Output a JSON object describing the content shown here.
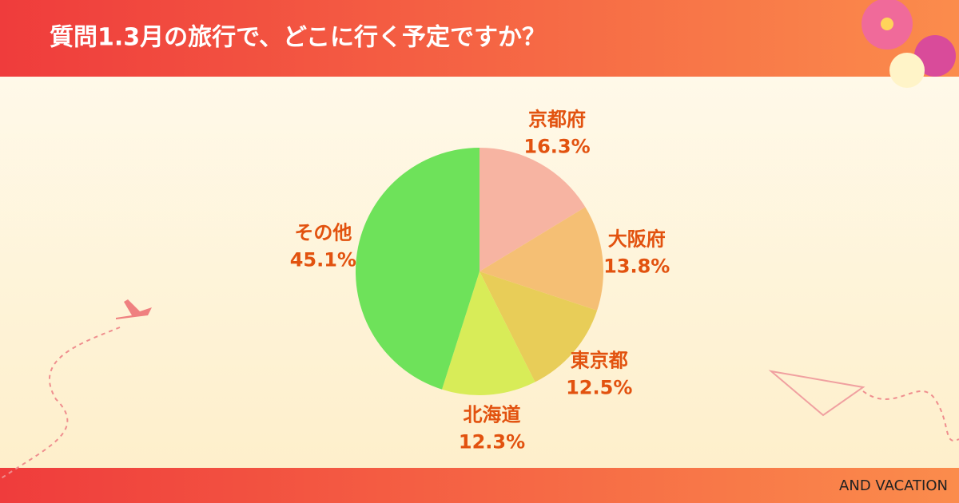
{
  "chart_data": {
    "type": "pie",
    "title": "質問1.3月の旅行で、どこに行く予定ですか？",
    "categories": [
      "京都府",
      "大阪府",
      "東京都",
      "北海道",
      "その他"
    ],
    "values": [
      16.3,
      13.8,
      12.5,
      12.3,
      45.1
    ],
    "value_labels": [
      "16.3%",
      "13.8%",
      "12.5%",
      "12.3%",
      "45.1%"
    ],
    "colors": [
      "#f7b4a2",
      "#f5bf74",
      "#e8cd58",
      "#d8ec58",
      "#6ee25a"
    ]
  },
  "footer": "AND VACATION"
}
